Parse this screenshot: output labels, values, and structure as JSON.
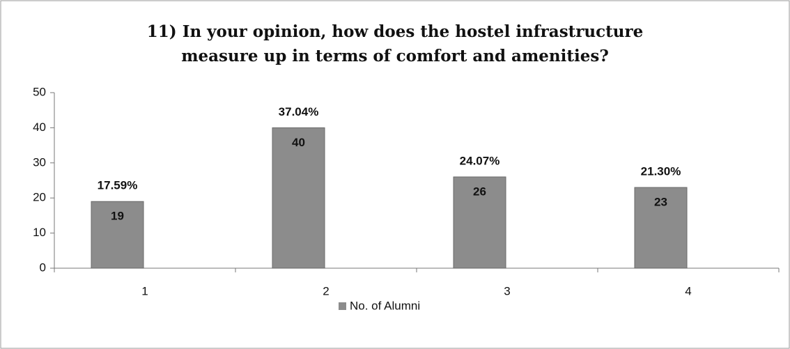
{
  "chart_data": {
    "type": "bar",
    "title": [
      "11) In your opinion, how does the hostel infrastructure",
      "measure up in terms of comfort and amenities?"
    ],
    "categories": [
      "1",
      "2",
      "3",
      "4"
    ],
    "series": [
      {
        "name": "No. of Alumni",
        "color": "#8c8c8c",
        "values": [
          19,
          40,
          26,
          23
        ]
      }
    ],
    "percent_labels": [
      "17.59%",
      "37.04%",
      "24.07%",
      "21.30%"
    ],
    "ylim": [
      0,
      50
    ],
    "yticks": [
      0,
      10,
      20,
      30,
      40,
      50
    ],
    "grid": false,
    "legend": "bottom"
  }
}
